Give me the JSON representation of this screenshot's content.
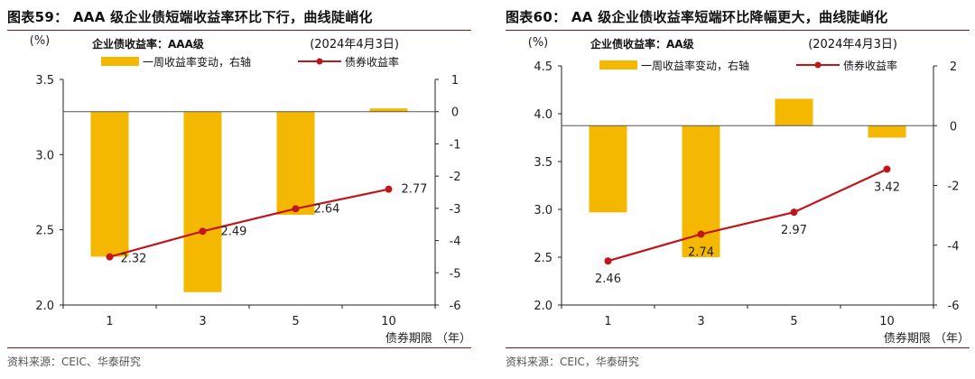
{
  "chart_data": [
    {
      "type": "bar+line",
      "figure_title": "图表59：  AAA 级企业债短端收益率环比下行，曲线陡峭化",
      "subtitle": "企业债收益率：AAA级",
      "date_note": "(2024年4月3日)",
      "left_unit": "(%)",
      "xlabel": "债券期限 （年）",
      "categories": [
        "1",
        "3",
        "5",
        "10"
      ],
      "left_ylim": [
        2.0,
        3.5
      ],
      "left_ticks": [
        "2.0",
        "2.5",
        "3.0",
        "3.5"
      ],
      "right_ylim": [
        -6,
        1
      ],
      "right_ticks": [
        "-6",
        "-5",
        "-4",
        "-3",
        "-2",
        "-1",
        "0",
        "1"
      ],
      "series": [
        {
          "name": "一周收益率变动，右轴",
          "kind": "bar",
          "axis": "right",
          "color": "#f5b800",
          "values": [
            -4.5,
            -5.6,
            -3.2,
            0.1
          ]
        },
        {
          "name": "债券收益率",
          "kind": "line",
          "axis": "left",
          "color": "#c0151a",
          "values": [
            2.32,
            2.49,
            2.64,
            2.77
          ],
          "labels": [
            "2.32",
            "2.49",
            "2.64",
            "2.77"
          ]
        }
      ],
      "source": "资料来源：CEIC、华泰研究"
    },
    {
      "type": "bar+line",
      "figure_title": "图表60：  AA 级企业债收益率短端环比降幅更大，曲线陡峭化",
      "subtitle": "企业债收益率：AA级",
      "date_note": "(2024年4月3日)",
      "left_unit": "(%)",
      "xlabel": "债券期限 （年）",
      "categories": [
        "1",
        "3",
        "5",
        "10"
      ],
      "left_ylim": [
        2.0,
        4.5
      ],
      "left_ticks": [
        "2.0",
        "2.5",
        "3.0",
        "3.5",
        "4.0",
        "4.5"
      ],
      "right_ylim": [
        -6,
        2
      ],
      "right_ticks": [
        "-6",
        "-4",
        "-2",
        "0",
        "2"
      ],
      "series": [
        {
          "name": "一周收益率变动，右轴",
          "kind": "bar",
          "axis": "right",
          "color": "#f5b800",
          "values": [
            -2.9,
            -4.4,
            0.9,
            -0.4
          ]
        },
        {
          "name": "债券收益率",
          "kind": "line",
          "axis": "left",
          "color": "#c0151a",
          "values": [
            2.46,
            2.74,
            2.97,
            3.42
          ],
          "labels": [
            "2.46",
            "2.74",
            "2.97",
            "3.42"
          ]
        }
      ],
      "source": "资料来源：CEIC，华泰研究"
    }
  ]
}
